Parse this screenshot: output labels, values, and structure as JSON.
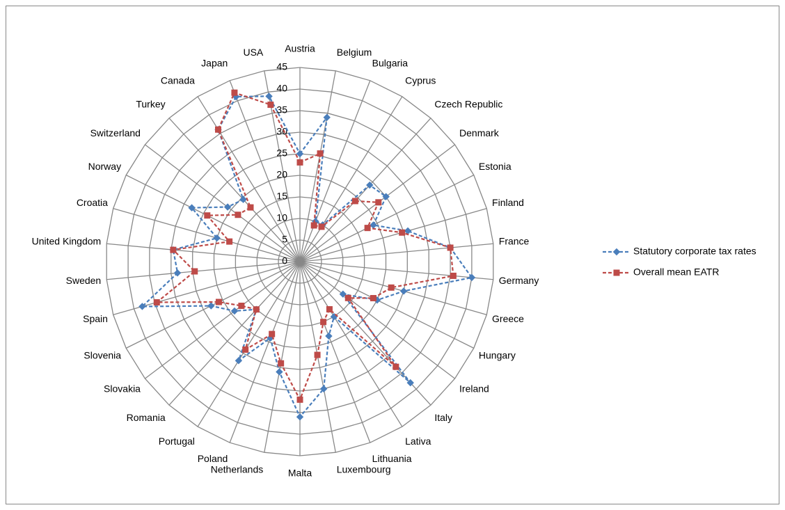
{
  "chart_data": {
    "type": "radar",
    "categories": [
      "Austria",
      "Belgium",
      "Bulgaria",
      "Cyprus",
      "Czech Republic",
      "Denmark",
      "Estonia",
      "Finland",
      "France",
      "Germany",
      "Greece",
      "Hungary",
      "Ireland",
      "Italy",
      "Lativa",
      "Lithuania",
      "Luxembourg",
      "Malta",
      "Netherlands",
      "Poland",
      "Portugal",
      "Romania",
      "Slovakia",
      "Slovenia",
      "Spain",
      "Sweden",
      "United Kingdom",
      "Croatia",
      "Norway",
      "Switzerland",
      "Turkey",
      "Canada",
      "Japan",
      "USA"
    ],
    "series": [
      {
        "name": "Statutory corporate tax rates",
        "color": "#4a7ebb",
        "marker": "diamond",
        "values": [
          25,
          34,
          10,
          10,
          24,
          25,
          19,
          26,
          35,
          40,
          25,
          20,
          12.5,
          38,
          15,
          18.5,
          30,
          36,
          26,
          19,
          27,
          15,
          19,
          23,
          38,
          28.5,
          29.5,
          20,
          28,
          21,
          19.5,
          36,
          41,
          39
        ]
      },
      {
        "name": "Overall mean EATR",
        "color": "#be4b48",
        "marker": "square",
        "values": [
          23,
          25.5,
          9,
          9.5,
          19,
          22.8,
          17.5,
          24.6,
          35,
          35.7,
          22,
          19,
          14,
          33,
          13,
          15,
          22,
          32,
          24,
          18,
          24,
          15,
          17,
          21,
          34.5,
          24.5,
          29.5,
          17,
          24,
          18,
          17,
          36,
          42,
          37
        ]
      }
    ],
    "ylim": [
      0,
      45
    ],
    "yticks": [
      0,
      5,
      10,
      15,
      20,
      25,
      30,
      35,
      40,
      45
    ],
    "grid": true,
    "legend": "right"
  }
}
